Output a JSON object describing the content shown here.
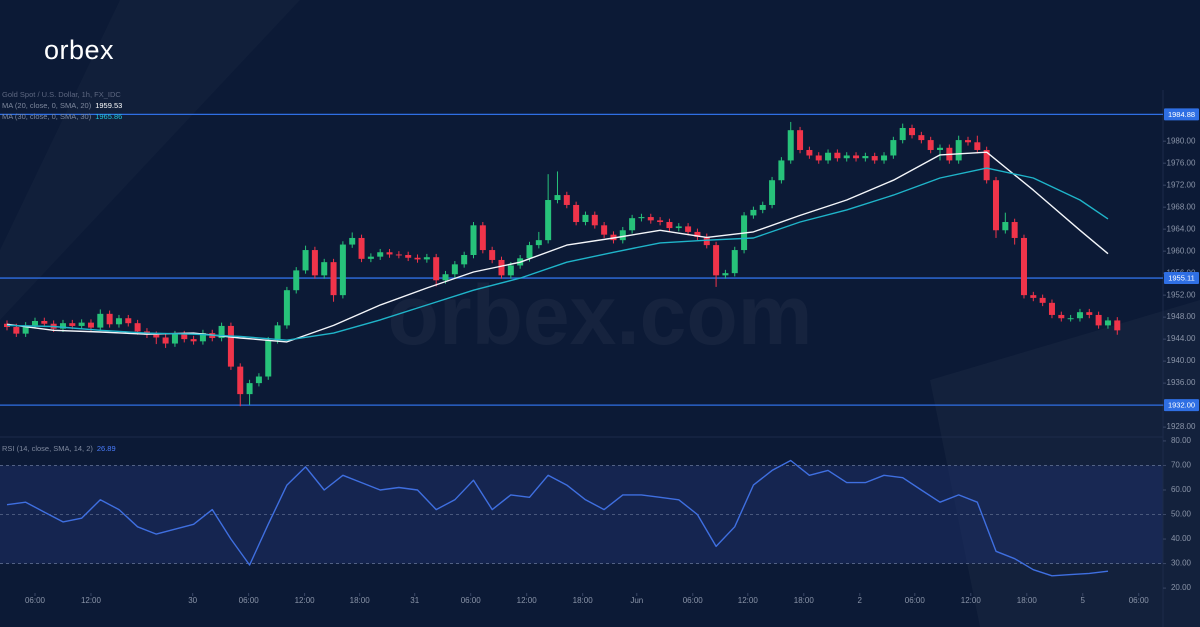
{
  "brand": "orbex",
  "watermark": "orbex.com",
  "chart_data": [
    {
      "type": "candlestick",
      "title": "Gold Spot / U.S. Dollar, 1h, FX_IDC",
      "up_color": "#27c27a",
      "down_color": "#f0344a",
      "xlim": [
        -0.75,
        123.9
      ],
      "ylim": [
        1926.2,
        1988.4
      ],
      "yticks": [
        {
          "value": 1928,
          "label": "1928.00"
        },
        {
          "value": 1932,
          "label": "1932.00"
        },
        {
          "value": 1936,
          "label": "1936.00"
        },
        {
          "value": 1940,
          "label": "1940.00"
        },
        {
          "value": 1944,
          "label": "1944.00"
        },
        {
          "value": 1948,
          "label": "1948.00"
        },
        {
          "value": 1952,
          "label": "1952.00"
        },
        {
          "value": 1956,
          "label": "1956.00"
        },
        {
          "value": 1960,
          "label": "1960.00"
        },
        {
          "value": 1964,
          "label": "1964.00"
        },
        {
          "value": 1968,
          "label": "1968.00"
        },
        {
          "value": 1972,
          "label": "1972.00"
        },
        {
          "value": 1976,
          "label": "1976.00"
        },
        {
          "value": 1980,
          "label": "1980.00"
        }
      ],
      "levels": [
        1984.88,
        1955.11,
        {
          "value": 1932,
          "label": "1932.00"
        }
      ],
      "level_color": "#2f6fe4",
      "candles": {
        "open": [
          1946.8,
          1946.2,
          1945.0,
          1946.5,
          1947.3,
          1946.8,
          1945.9,
          1946.9,
          1946.4,
          1947.0,
          1946.1,
          1948.6,
          1946.7,
          1947.8,
          1946.9,
          1945.4,
          1944.8,
          1944.3,
          1943.2,
          1944.9,
          1944.0,
          1943.6,
          1945.1,
          1944.2,
          1946.4,
          1939.0,
          1934.0,
          1936.0,
          1937.2,
          1943.8,
          1946.5,
          1952.9,
          1956.5,
          1960.2,
          1955.6,
          1958.0,
          1952.0,
          1961.2,
          1962.4,
          1958.6,
          1959.0,
          1959.8,
          1959.4,
          1959.3,
          1958.8,
          1958.5,
          1958.9,
          1954.7,
          1955.8,
          1957.6,
          1959.3,
          1964.7,
          1960.2,
          1958.4,
          1955.6,
          1957.4,
          1958.7,
          1961.1,
          1962.0,
          1969.3,
          1970.2,
          1968.4,
          1965.3,
          1966.6,
          1964.7,
          1963.0,
          1962.0,
          1963.8,
          1966.0,
          1966.2,
          1965.6,
          1965.3,
          1964.2,
          1964.5,
          1963.5,
          1962.6,
          1961.1,
          1955.6,
          1956.0,
          1960.2,
          1966.5,
          1967.5,
          1968.4,
          1972.9,
          1976.5,
          1982.0,
          1978.4,
          1977.4,
          1976.5,
          1977.9,
          1976.9,
          1977.4,
          1976.9,
          1977.3,
          1976.5,
          1977.4,
          1980.2,
          1982.4,
          1981.1,
          1980.2,
          1978.4,
          1978.8,
          1976.5,
          1980.2,
          1979.8,
          1978.4,
          1972.9,
          1963.8,
          1965.3,
          1962.4,
          1952.0,
          1951.5,
          1950.6,
          1948.4,
          1947.8,
          1947.8,
          1948.9,
          1948.4,
          1946.5,
          1947.4
        ],
        "high": [
          1947.4,
          1946.8,
          1947.1,
          1947.9,
          1947.9,
          1947.4,
          1947.5,
          1947.5,
          1947.6,
          1947.6,
          1949.4,
          1949.2,
          1948.4,
          1948.4,
          1947.5,
          1946.0,
          1945.4,
          1944.9,
          1945.5,
          1945.5,
          1944.6,
          1945.7,
          1945.7,
          1947.0,
          1947.0,
          1939.6,
          1936.6,
          1937.8,
          1944.4,
          1947.1,
          1953.5,
          1957.1,
          1961.0,
          1960.8,
          1958.6,
          1958.6,
          1961.8,
          1963.4,
          1963.0,
          1959.6,
          1960.4,
          1960.4,
          1960.0,
          1959.9,
          1959.4,
          1959.5,
          1959.5,
          1956.4,
          1958.2,
          1959.9,
          1965.3,
          1965.3,
          1960.8,
          1959.0,
          1958.0,
          1959.3,
          1961.7,
          1963.5,
          1974.0,
          1974.5,
          1970.8,
          1969.0,
          1967.2,
          1967.2,
          1965.3,
          1963.6,
          1964.4,
          1966.6,
          1966.8,
          1966.8,
          1966.2,
          1965.9,
          1965.1,
          1965.1,
          1964.1,
          1963.2,
          1961.7,
          1956.6,
          1960.8,
          1967.1,
          1968.1,
          1969.0,
          1973.5,
          1977.1,
          1983.5,
          1982.6,
          1979.0,
          1978.0,
          1978.5,
          1978.5,
          1978.0,
          1978.0,
          1977.9,
          1977.9,
          1978.0,
          1980.8,
          1983.2,
          1983.0,
          1981.7,
          1980.8,
          1979.4,
          1979.4,
          1981.0,
          1980.8,
          1981.0,
          1979.0,
          1973.5,
          1967.0,
          1965.9,
          1963.0,
          1952.6,
          1952.1,
          1951.2,
          1949.0,
          1948.4,
          1949.5,
          1949.5,
          1949.0,
          1948.0,
          1948.0
        ],
        "low": [
          1945.6,
          1944.4,
          1944.4,
          1945.9,
          1946.2,
          1945.3,
          1945.3,
          1945.8,
          1945.8,
          1945.5,
          1945.5,
          1946.1,
          1946.1,
          1946.3,
          1944.8,
          1944.2,
          1943.1,
          1942.4,
          1942.6,
          1943.4,
          1943.0,
          1943.0,
          1943.6,
          1943.6,
          1938.4,
          1931.8,
          1932.0,
          1935.4,
          1936.6,
          1943.2,
          1945.9,
          1952.3,
          1955.9,
          1955.0,
          1955.0,
          1950.8,
          1951.4,
          1960.6,
          1958.0,
          1958.0,
          1958.4,
          1958.8,
          1958.7,
          1958.2,
          1957.9,
          1957.9,
          1953.6,
          1954.1,
          1955.2,
          1957.0,
          1958.7,
          1959.6,
          1957.8,
          1955.0,
          1955.0,
          1956.8,
          1958.1,
          1960.5,
          1961.4,
          1968.7,
          1967.8,
          1964.7,
          1964.7,
          1964.1,
          1962.4,
          1961.4,
          1961.4,
          1963.2,
          1965.4,
          1965.0,
          1964.7,
          1963.6,
          1963.6,
          1962.9,
          1962.0,
          1960.5,
          1953.5,
          1955.0,
          1955.4,
          1959.6,
          1965.9,
          1966.9,
          1967.8,
          1972.3,
          1975.9,
          1977.8,
          1976.8,
          1975.9,
          1975.9,
          1976.3,
          1976.3,
          1976.3,
          1976.3,
          1975.9,
          1975.9,
          1976.8,
          1979.6,
          1980.5,
          1979.6,
          1977.8,
          1976.5,
          1975.9,
          1975.9,
          1979.2,
          1977.8,
          1972.3,
          1962.4,
          1963.2,
          1961.2,
          1951.4,
          1950.9,
          1950.0,
          1947.8,
          1947.2,
          1947.2,
          1947.2,
          1947.8,
          1945.9,
          1945.9,
          1944.8
        ],
        "close": [
          1946.2,
          1945.0,
          1946.5,
          1947.3,
          1946.8,
          1945.9,
          1946.9,
          1946.4,
          1947.0,
          1946.1,
          1948.6,
          1946.7,
          1947.8,
          1946.9,
          1945.4,
          1944.8,
          1944.3,
          1943.2,
          1944.9,
          1944.0,
          1943.6,
          1945.1,
          1944.2,
          1946.4,
          1939.0,
          1934.0,
          1936.0,
          1937.2,
          1943.8,
          1946.5,
          1952.9,
          1956.5,
          1960.2,
          1955.6,
          1958.0,
          1952.0,
          1961.2,
          1962.4,
          1958.6,
          1959.0,
          1959.8,
          1959.4,
          1959.3,
          1958.8,
          1958.5,
          1958.9,
          1954.7,
          1955.8,
          1957.6,
          1959.3,
          1964.7,
          1960.2,
          1958.4,
          1955.6,
          1957.4,
          1958.7,
          1961.1,
          1962.0,
          1969.3,
          1970.2,
          1968.4,
          1965.3,
          1966.6,
          1964.7,
          1963.0,
          1962.0,
          1963.8,
          1966.0,
          1966.2,
          1965.6,
          1965.3,
          1964.2,
          1964.5,
          1963.5,
          1962.6,
          1961.1,
          1955.6,
          1956.0,
          1960.2,
          1966.5,
          1967.5,
          1968.4,
          1972.9,
          1976.5,
          1982.0,
          1978.4,
          1977.4,
          1976.5,
          1977.9,
          1976.9,
          1977.4,
          1976.9,
          1977.3,
          1976.5,
          1977.4,
          1980.2,
          1982.4,
          1981.1,
          1980.2,
          1978.4,
          1978.8,
          1976.5,
          1980.2,
          1979.8,
          1978.4,
          1972.9,
          1963.8,
          1965.3,
          1962.4,
          1952.0,
          1951.5,
          1950.6,
          1948.4,
          1947.8,
          1947.8,
          1948.9,
          1948.4,
          1946.5,
          1947.4,
          1945.6
        ]
      },
      "series": [
        {
          "name": "MA (20, close, 0, SMA, 20)",
          "color": "#f4f6fa",
          "value_color": "#ffffff",
          "x": [
            0,
            5,
            10,
            15,
            20,
            25,
            30,
            35,
            40,
            45,
            50,
            55,
            60,
            65,
            70,
            75,
            80,
            85,
            90,
            95,
            100,
            105,
            110,
            115,
            118
          ],
          "values": [
            1946.7,
            1945.6,
            1945.3,
            1944.9,
            1945.1,
            1944.2,
            1943.5,
            1946.5,
            1950.2,
            1953.3,
            1956.2,
            1958.0,
            1961.1,
            1962.4,
            1963.8,
            1962.5,
            1963.5,
            1966.5,
            1969.3,
            1972.9,
            1977.5,
            1978.0,
            1971.1,
            1963.8,
            1959.53
          ]
        },
        {
          "name": "MA (30, close, 0, SMA, 30)",
          "color": "#1fb4c9",
          "value_color": "#22c3da",
          "x": [
            0,
            5,
            10,
            15,
            20,
            25,
            30,
            35,
            40,
            45,
            50,
            55,
            60,
            65,
            70,
            75,
            80,
            85,
            90,
            95,
            100,
            105,
            110,
            115,
            118
          ],
          "values": [
            1946.5,
            1946.3,
            1945.6,
            1945.1,
            1944.9,
            1944.5,
            1943.8,
            1945.1,
            1947.5,
            1950.2,
            1952.9,
            1955.1,
            1958.0,
            1959.8,
            1961.5,
            1962.0,
            1962.4,
            1965.3,
            1967.5,
            1970.2,
            1973.3,
            1975.1,
            1973.3,
            1969.3,
            1965.86
          ]
        }
      ]
    },
    {
      "type": "line",
      "xlim": [
        -0.75,
        123.9
      ],
      "ylim": [
        18,
        81.6
      ],
      "yticks": [
        {
          "value": 20,
          "label": "20.00"
        },
        {
          "value": 30,
          "label": "30.00"
        },
        {
          "value": 40,
          "label": "40.00"
        },
        {
          "value": 50,
          "label": "50.00"
        },
        {
          "value": 60,
          "label": "60.00"
        },
        {
          "value": 70,
          "label": "70.00"
        },
        {
          "value": 80,
          "label": "80.00"
        }
      ],
      "xticks": [
        {
          "value": 3.0,
          "label": "06:00"
        },
        {
          "value": 9.0,
          "label": "12:00"
        },
        {
          "value": 19.9,
          "label": "30"
        },
        {
          "value": 25.9,
          "label": "06:00"
        },
        {
          "value": 31.9,
          "label": "12:00"
        },
        {
          "value": 37.8,
          "label": "18:00"
        },
        {
          "value": 43.7,
          "label": "31"
        },
        {
          "value": 49.7,
          "label": "06:00"
        },
        {
          "value": 55.7,
          "label": "12:00"
        },
        {
          "value": 61.7,
          "label": "18:00"
        },
        {
          "value": 67.5,
          "label": "Jun"
        },
        {
          "value": 73.5,
          "label": "06:00"
        },
        {
          "value": 79.4,
          "label": "12:00"
        },
        {
          "value": 85.4,
          "label": "18:00"
        },
        {
          "value": 91.4,
          "label": "2"
        },
        {
          "value": 97.3,
          "label": "06:00"
        },
        {
          "value": 103.3,
          "label": "12:00"
        },
        {
          "value": 109.3,
          "label": "18:00"
        },
        {
          "value": 115.3,
          "label": "5"
        },
        {
          "value": 121.3,
          "label": "06:00"
        }
      ],
      "guides": [
        30,
        50,
        70
      ],
      "series": [
        {
          "name": "RSI (14, close, SMA, 14, 2)",
          "color": "#3f6fe0",
          "value_color": "#4a7dff",
          "x": [
            0,
            2,
            4,
            6,
            8,
            10,
            12,
            14,
            16,
            18,
            20,
            22,
            24,
            26,
            28,
            30,
            32,
            34,
            36,
            38,
            40,
            42,
            44,
            46,
            48,
            50,
            52,
            54,
            56,
            58,
            60,
            62,
            64,
            66,
            68,
            70,
            72,
            74,
            76,
            78,
            80,
            82,
            84,
            86,
            88,
            90,
            92,
            94,
            96,
            98,
            100,
            102,
            104,
            106,
            108,
            110,
            112,
            114,
            116,
            118
          ],
          "values": [
            54,
            55,
            51,
            47,
            48.5,
            56,
            52,
            45,
            42,
            44,
            46,
            52,
            40,
            29.4,
            46,
            62,
            69.4,
            60,
            66,
            63,
            60,
            61,
            60,
            52,
            56,
            64,
            52,
            58,
            57,
            66,
            62,
            56,
            52,
            58,
            58,
            57,
            56,
            50,
            37,
            45,
            62,
            68,
            72,
            66,
            68,
            63,
            63,
            66,
            65,
            60,
            55,
            58,
            55,
            35,
            32,
            27.5,
            25,
            25.5,
            26,
            26.89
          ]
        }
      ]
    }
  ]
}
